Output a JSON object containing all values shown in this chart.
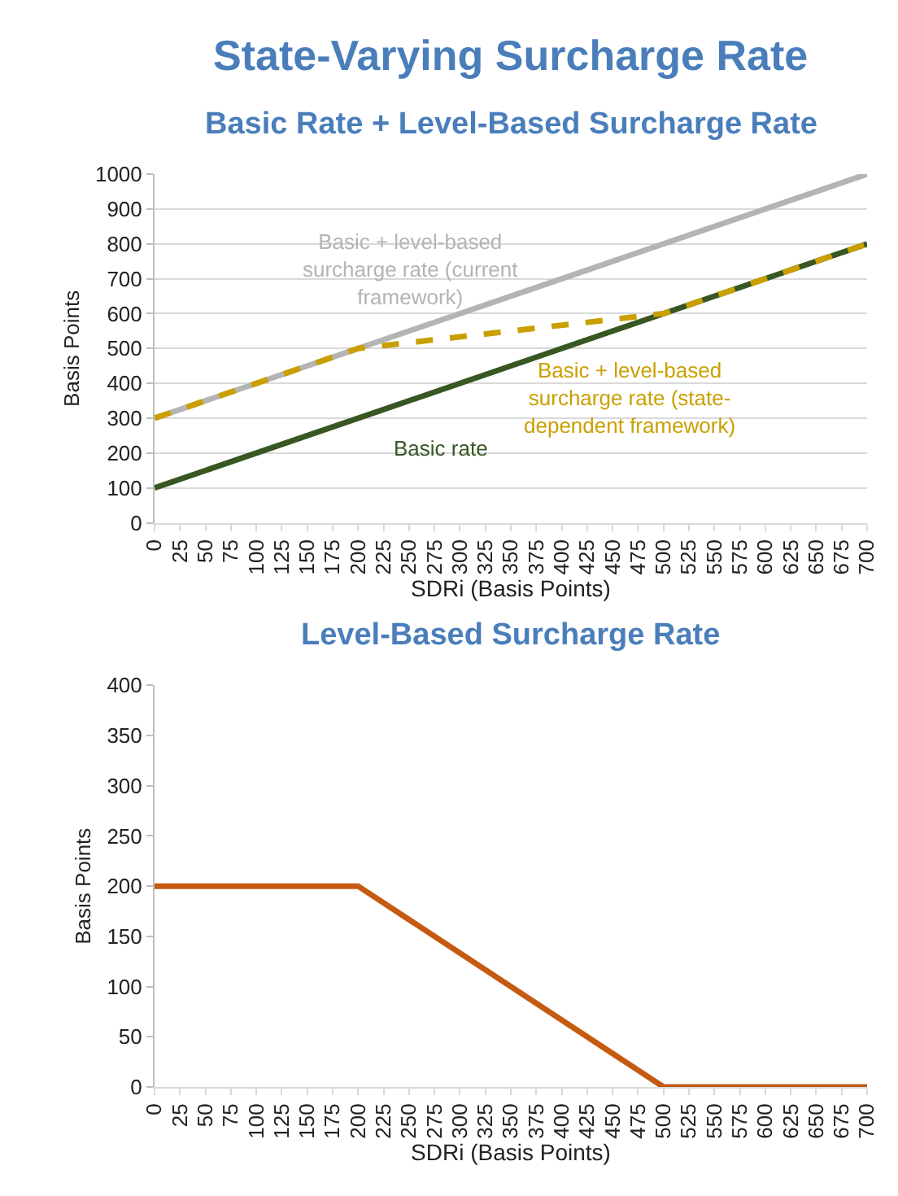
{
  "chart_data": [
    {
      "type": "line",
      "title": "State-Varying Surcharge Rate",
      "subtitle": "Basic Rate + Level-Based Surcharge Rate",
      "xlabel": "SDRi (Basis Points)",
      "ylabel": "Basis Points",
      "series": [
        {
          "name": "Basic + level-based surcharge rate (current framework)",
          "color": "#b4b4b4",
          "x": [
            0,
            700
          ],
          "values": [
            300,
            1000
          ],
          "line_style": "solid"
        },
        {
          "name": "Basic rate",
          "color": "#385723",
          "x": [
            0,
            700
          ],
          "values": [
            100,
            800
          ],
          "line_style": "solid"
        },
        {
          "name": "Basic + level-based surcharge rate (state-dependent framework)",
          "color": "#c9a000",
          "x": [
            0,
            200,
            500,
            700
          ],
          "values": [
            300,
            500,
            600,
            800
          ],
          "line_style": "dashed"
        }
      ],
      "xlim": [
        0,
        700
      ],
      "xticks": [
        0,
        25,
        50,
        75,
        100,
        125,
        150,
        175,
        200,
        225,
        250,
        275,
        300,
        325,
        350,
        375,
        400,
        425,
        450,
        475,
        500,
        525,
        550,
        575,
        600,
        625,
        650,
        675,
        700
      ],
      "ylim": [
        0,
        1000
      ],
      "yticks": [
        0,
        100,
        200,
        300,
        400,
        500,
        600,
        700,
        800,
        900,
        1000
      ],
      "grid": "y",
      "marker": "none"
    },
    {
      "type": "line",
      "title": "Level-Based Surcharge Rate",
      "xlabel": "SDRi (Basis Points)",
      "ylabel": "Basis Points",
      "series": [
        {
          "color": "#c55a11",
          "x": [
            0,
            200,
            500,
            700
          ],
          "values": [
            200,
            200,
            0,
            0
          ],
          "line_style": "solid"
        }
      ],
      "xlim": [
        0,
        700
      ],
      "xticks": [
        0,
        25,
        50,
        75,
        100,
        125,
        150,
        175,
        200,
        225,
        250,
        275,
        300,
        325,
        350,
        375,
        400,
        425,
        450,
        475,
        500,
        525,
        550,
        575,
        600,
        625,
        650,
        675,
        700
      ],
      "ylim": [
        0,
        400
      ],
      "yticks": [
        0,
        50,
        100,
        150,
        200,
        250,
        300,
        350,
        400
      ],
      "grid": false,
      "marker": "none"
    }
  ]
}
